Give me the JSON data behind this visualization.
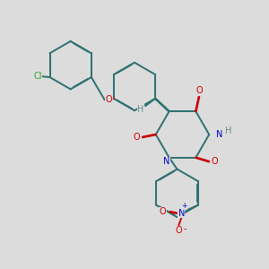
{
  "bg_color": "#dcdcdc",
  "C": "#2d7070",
  "N": "#0000cc",
  "O": "#cc0000",
  "Cl": "#22aa22",
  "H_color": "#6a8a8a",
  "lw": 1.4,
  "dbo": 0.012,
  "fs": 6.5
}
